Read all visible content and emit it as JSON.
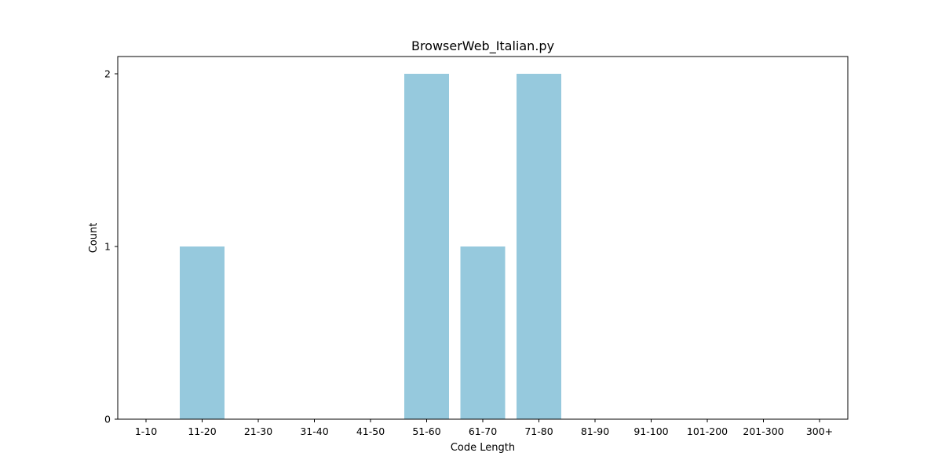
{
  "chart_data": {
    "type": "bar",
    "title": "BrowserWeb_Italian.py",
    "xlabel": "Code Length",
    "ylabel": "Count",
    "categories": [
      "1-10",
      "11-20",
      "21-30",
      "31-40",
      "41-50",
      "51-60",
      "61-70",
      "71-80",
      "81-90",
      "91-100",
      "101-200",
      "201-300",
      "300+"
    ],
    "values": [
      0,
      1,
      0,
      0,
      0,
      2,
      1,
      2,
      0,
      0,
      0,
      0,
      0
    ],
    "ylim": [
      0,
      2.1
    ],
    "yticks": [
      0,
      1,
      2
    ],
    "grid": false,
    "legend": "none",
    "bar_color": "#96c9dd"
  }
}
